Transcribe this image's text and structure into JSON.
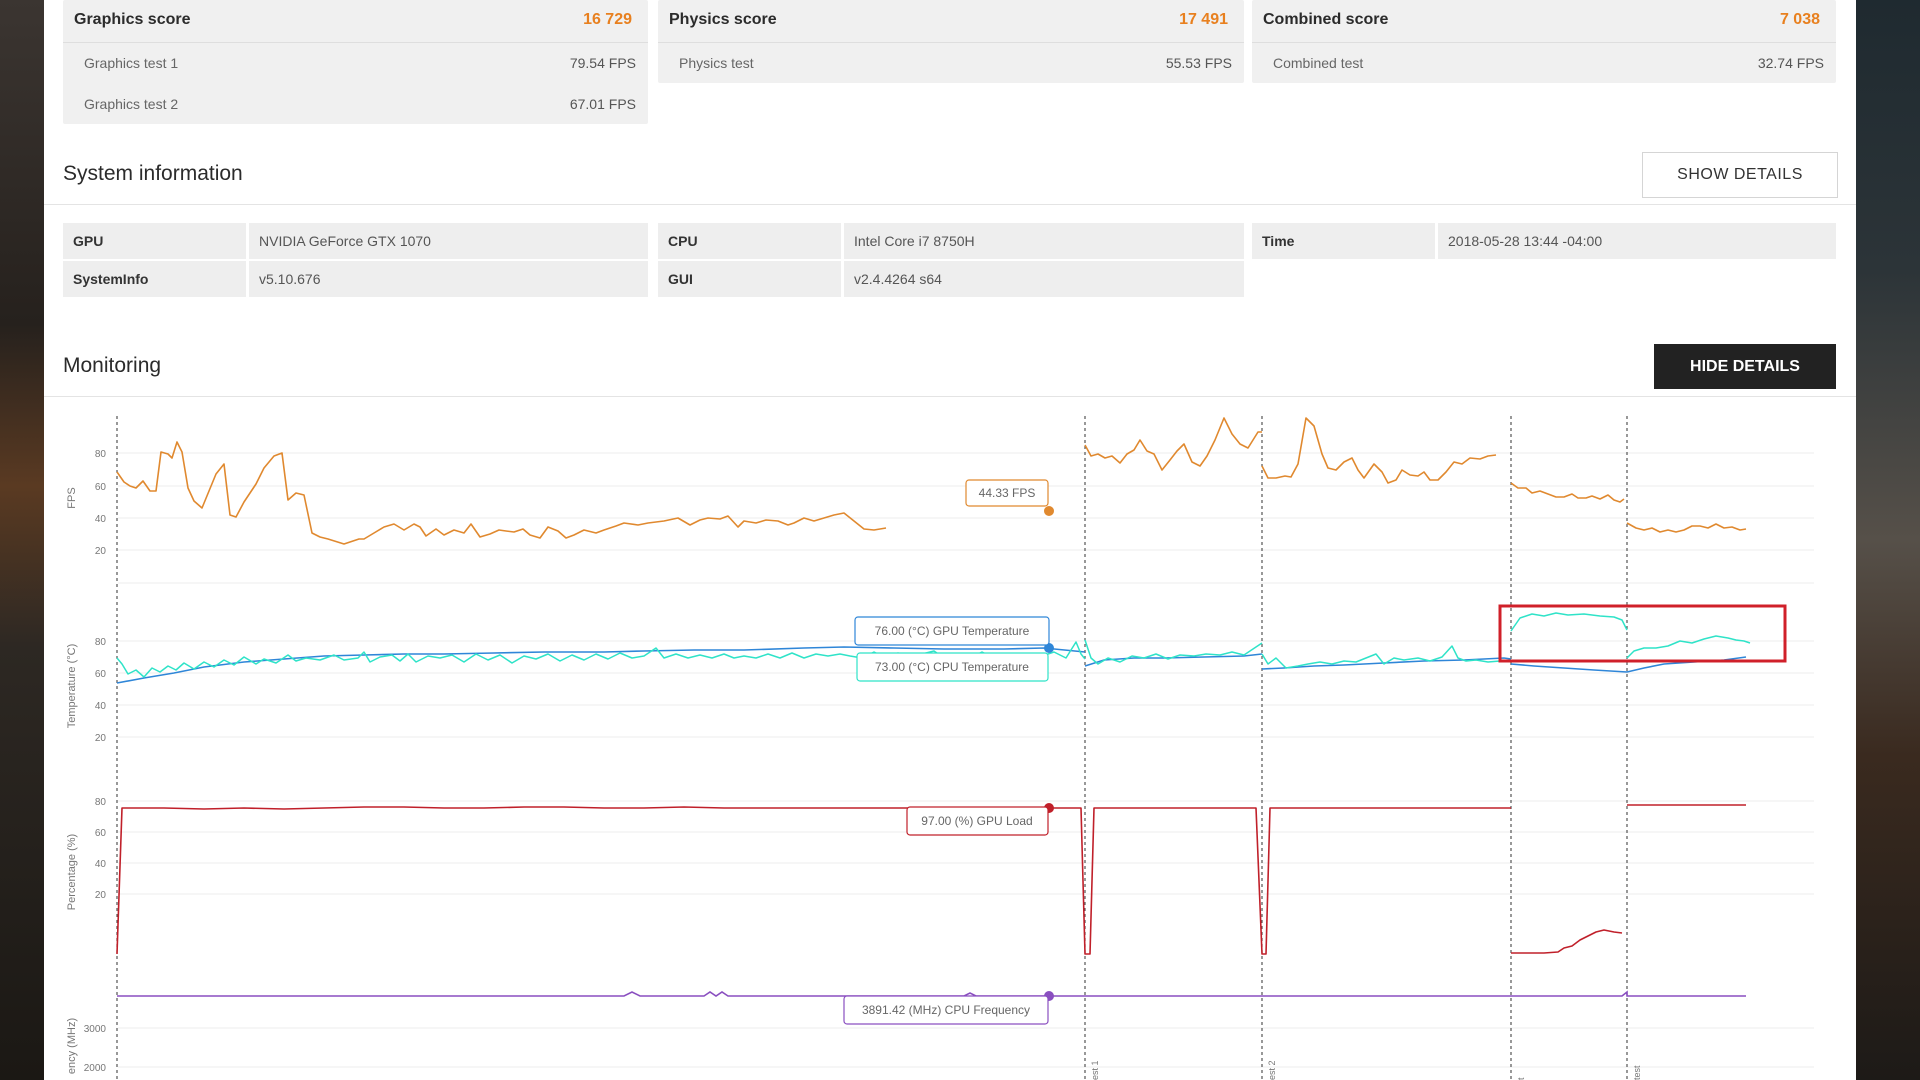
{
  "scores": [
    {
      "title": "Graphics score",
      "value": "16 729",
      "rows": [
        {
          "label": "Graphics test 1",
          "value": "79.54 FPS"
        },
        {
          "label": "Graphics test 2",
          "value": "67.01 FPS"
        }
      ]
    },
    {
      "title": "Physics score",
      "value": "17 491",
      "rows": [
        {
          "label": "Physics test",
          "value": "55.53 FPS"
        }
      ]
    },
    {
      "title": "Combined score",
      "value": "7 038",
      "rows": [
        {
          "label": "Combined test",
          "value": "32.74 FPS"
        }
      ]
    }
  ],
  "system_info": {
    "title": "System information",
    "show_details": "SHOW DETAILS",
    "gpu_key": "GPU",
    "gpu_val": "NVIDIA GeForce GTX 1070",
    "systeminfo_key": "SystemInfo",
    "systeminfo_val": "v5.10.676",
    "cpu_key": "CPU",
    "cpu_val": "Intel Core i7 8750H",
    "gui_key": "GUI",
    "gui_val": "v2.4.4264 s64",
    "time_key": "Time",
    "time_val": "2018-05-28 13:44 -04:00"
  },
  "monitoring": {
    "title": "Monitoring",
    "hide_details": "HIDE DETAILS",
    "y_ticks": [
      "80",
      "60",
      "40",
      "20"
    ],
    "freq_ticks": [
      "3000",
      "2000"
    ],
    "fps_axis": "FPS",
    "temp_axis": "Temperature (°C)",
    "pct_axis": "Percentage (%)",
    "freq_axis": "ency (MHz)",
    "fps_tooltip": "44.33 FPS",
    "gpu_temp_tooltip": "76.00 (°C) GPU Temperature",
    "cpu_temp_tooltip": "73.00 (°C) CPU Temperature",
    "gpu_load_tooltip": "97.00 (%) GPU Load",
    "cpu_freq_tooltip": "3891.42 (MHz) CPU Frequency",
    "section_labels": [
      "est 1",
      "est 2",
      "t",
      "test"
    ]
  },
  "colors": {
    "fps": "#e0892f",
    "gpu_temp": "#2fe3c8",
    "cpu_temp": "#2f86d8",
    "gpu_load": "#c0202a",
    "cpu_freq": "#8a4fc0",
    "highlight": "#d0202a",
    "accent": "#e8801f"
  }
}
